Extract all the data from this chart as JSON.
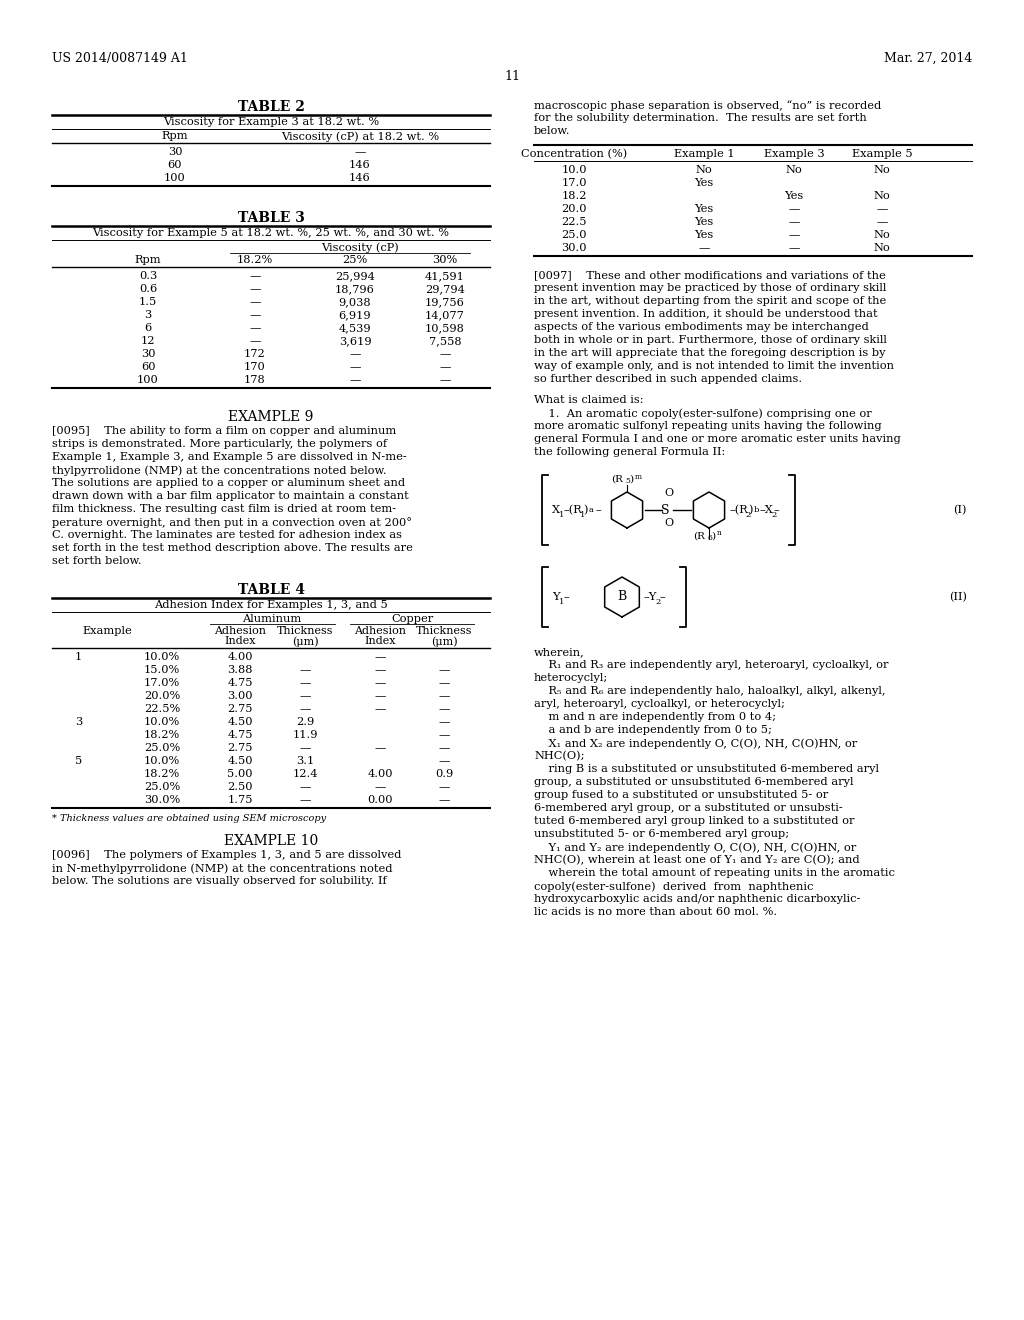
{
  "header_left": "US 2014/0087149 A1",
  "header_right": "Mar. 27, 2014",
  "page_number": "11",
  "background_color": "#ffffff",
  "table2_title": "TABLE 2",
  "table2_subtitle": "Viscosity for Example 3 at 18.2 wt. %",
  "table2_col1": "Rpm",
  "table2_col2": "Viscosity (cP) at 18.2 wt. %",
  "table2_rows": [
    [
      "30",
      "—"
    ],
    [
      "60",
      "146"
    ],
    [
      "100",
      "146"
    ]
  ],
  "table3_title": "TABLE 3",
  "table3_subtitle": "Viscosity for Example 5 at 18.2 wt. %, 25 wt. %, and 30 wt. %",
  "table3_col1": "Rpm",
  "table3_col2": "18.2%",
  "table3_col3": "25%",
  "table3_col4": "30%",
  "table3_viscosity_label": "Viscosity (cP)",
  "table3_rows": [
    [
      "0.3",
      "—",
      "25,994",
      "41,591"
    ],
    [
      "0.6",
      "—",
      "18,796",
      "29,794"
    ],
    [
      "1.5",
      "—",
      "9,038",
      "19,756"
    ],
    [
      "3",
      "—",
      "6,919",
      "14,077"
    ],
    [
      "6",
      "—",
      "4,539",
      "10,598"
    ],
    [
      "12",
      "—",
      "3,619",
      "7,558"
    ],
    [
      "30",
      "172",
      "—",
      "—"
    ],
    [
      "60",
      "170",
      "—",
      "—"
    ],
    [
      "100",
      "178",
      "—",
      "—"
    ]
  ],
  "example9_title": "EXAMPLE 9",
  "table4_title": "TABLE 4",
  "table4_subtitle": "Adhesion Index for Examples 1, 3, and 5",
  "table4_aluminum_label": "Aluminum",
  "table4_copper_label": "Copper",
  "table4_rows": [
    [
      "1",
      "10.0%",
      "4.00",
      "",
      "—",
      ""
    ],
    [
      "",
      "15.0%",
      "3.88",
      "—",
      "—",
      "—"
    ],
    [
      "",
      "17.0%",
      "4.75",
      "—",
      "—",
      "—"
    ],
    [
      "",
      "20.0%",
      "3.00",
      "—",
      "—",
      "—"
    ],
    [
      "",
      "22.5%",
      "2.75",
      "—",
      "—",
      "—"
    ],
    [
      "3",
      "10.0%",
      "4.50",
      "2.9",
      "",
      "—"
    ],
    [
      "",
      "18.2%",
      "4.75",
      "11.9",
      "",
      "—"
    ],
    [
      "",
      "25.0%",
      "2.75",
      "—",
      "—",
      "—"
    ],
    [
      "5",
      "10.0%",
      "4.50",
      "3.1",
      "",
      "—"
    ],
    [
      "",
      "18.2%",
      "5.00",
      "12.4",
      "4.00",
      "0.9"
    ],
    [
      "",
      "25.0%",
      "2.50",
      "—",
      "—",
      "—"
    ],
    [
      "",
      "30.0%",
      "1.75",
      "—",
      "0.00",
      "—"
    ]
  ],
  "table4_footnote": "* Thickness values are obtained using SEM microscopy",
  "example10_title": "EXAMPLE 10",
  "right_col_lines1": [
    "macroscopic phase separation is observed, “no” is recorded",
    "for the solubility determination.  The results are set forth",
    "below."
  ],
  "solubility_table_rows": [
    [
      "10.0",
      "No",
      "No",
      "No"
    ],
    [
      "17.0",
      "Yes",
      "",
      ""
    ],
    [
      "18.2",
      "",
      "Yes",
      "No"
    ],
    [
      "20.0",
      "Yes",
      "—",
      "—"
    ],
    [
      "22.5",
      "Yes",
      "—",
      "—"
    ],
    [
      "25.0",
      "Yes",
      "—",
      "No"
    ],
    [
      "30.0",
      "—",
      "—",
      "No"
    ]
  ],
  "lines_0097": [
    "[0097]    These and other modifications and variations of the",
    "present invention may be practiced by those of ordinary skill",
    "in the art, without departing from the spirit and scope of the",
    "present invention. In addition, it should be understood that",
    "aspects of the various embodiments may be interchanged",
    "both in whole or in part. Furthermore, those of ordinary skill",
    "in the art will appreciate that the foregoing description is by",
    "way of example only, and is not intended to limit the invention",
    "so further described in such appended claims."
  ],
  "claims_header": "What is claimed is:",
  "claim1_lines": [
    "    1.  An aromatic copoly(ester-sulfone) comprising one or",
    "more aromatic sulfonyl repeating units having the following",
    "general Formula I and one or more aromatic ester units having",
    "the following general Formula II:"
  ],
  "wherein_lines": [
    "wherein,",
    "    R₁ and R₃ are independently aryl, heteroaryl, cycloalkyl, or",
    "heterocyclyl;",
    "    R₅ and R₆ are independently halo, haloalkyl, alkyl, alkenyl,",
    "aryl, heteroaryl, cycloalkyl, or heterocyclyl;",
    "    m and n are independently from 0 to 4;",
    "    a and b are independently from 0 to 5;",
    "    X₁ and X₂ are independently O, C(O), NH, C(O)HN, or",
    "NHC(O);",
    "    ring B is a substituted or unsubstituted 6-membered aryl",
    "group, a substituted or unsubstituted 6-membered aryl",
    "group fused to a substituted or unsubstituted 5- or",
    "6-membered aryl group, or a substituted or unsubsti-",
    "tuted 6-membered aryl group linked to a substituted or",
    "unsubstituted 5- or 6-membered aryl group;",
    "    Y₁ and Y₂ are independently O, C(O), NH, C(O)HN, or",
    "NHC(O), wherein at least one of Y₁ and Y₂ are C(O); and",
    "    wherein the total amount of repeating units in the aromatic",
    "copoly(ester-sulfone)  derived  from  naphthenic",
    "hydroxycarboxylic acids and/or naphthenic dicarboxylic-",
    "lic acids is no more than about 60 mol. %."
  ],
  "lines_0095": [
    "[0095]    The ability to form a film on copper and aluminum",
    "strips is demonstrated. More particularly, the polymers of",
    "Example 1, Example 3, and Example 5 are dissolved in N-me-",
    "thylpyrrolidone (NMP) at the concentrations noted below.",
    "The solutions are applied to a copper or aluminum sheet and",
    "drawn down with a bar film applicator to maintain a constant",
    "film thickness. The resulting cast film is dried at room tem-",
    "perature overnight, and then put in a convection oven at 200°",
    "C. overnight. The laminates are tested for adhesion index as",
    "set forth in the test method description above. The results are",
    "set forth below."
  ],
  "lines_0096": [
    "[0096]    The polymers of Examples 1, 3, and 5 are dissolved",
    "in N-methylpyrrolidone (NMP) at the concentrations noted",
    "below. The solutions are visually observed for solubility. If"
  ]
}
